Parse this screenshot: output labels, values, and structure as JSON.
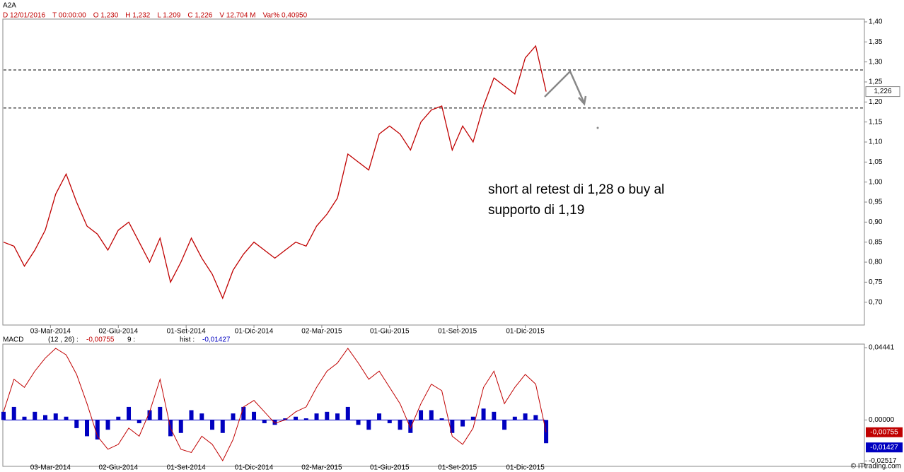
{
  "header": {
    "symbol": "A2A",
    "info": [
      "D 12/01/2016",
      "T 00:00:00",
      "O 1,230",
      "H 1,232",
      "L 1,209",
      "C 1,226",
      "V 12,704 M",
      "Var% 0,40950"
    ]
  },
  "chart_data": [
    {
      "type": "line",
      "color": "#c00000",
      "values": [
        0.85,
        0.84,
        0.79,
        0.83,
        0.88,
        0.97,
        1.02,
        0.95,
        0.89,
        0.87,
        0.83,
        0.88,
        0.9,
        0.85,
        0.8,
        0.86,
        0.75,
        0.8,
        0.86,
        0.81,
        0.77,
        0.71,
        0.78,
        0.82,
        0.85,
        0.83,
        0.81,
        0.83,
        0.85,
        0.84,
        0.89,
        0.92,
        0.96,
        1.07,
        1.05,
        1.03,
        1.12,
        1.14,
        1.12,
        1.08,
        1.15,
        1.18,
        1.19,
        1.08,
        1.14,
        1.1,
        1.19,
        1.26,
        1.24,
        1.22,
        1.31,
        1.34,
        1.226
      ],
      "xlim": [
        0,
        82.5
      ],
      "xticks": [
        {
          "value": 4.5,
          "label": "03-Mar-2014"
        },
        {
          "value": 11,
          "label": "02-Giu-2014"
        },
        {
          "value": 17.5,
          "label": "01-Set-2014"
        },
        {
          "value": 24,
          "label": "01-Dic-2014"
        },
        {
          "value": 30.5,
          "label": "02-Mar-2015"
        },
        {
          "value": 37,
          "label": "01-Giu-2015"
        },
        {
          "value": 43.5,
          "label": "01-Set-2015"
        },
        {
          "value": 50,
          "label": "01-Dic-2015"
        }
      ],
      "ylim": [
        0.643,
        1.407
      ],
      "yticks": [
        {
          "value": 0.7,
          "label": "0,70"
        },
        {
          "value": 0.75,
          "label": "0,75"
        },
        {
          "value": 0.8,
          "label": "0,80"
        },
        {
          "value": 0.85,
          "label": "0,85"
        },
        {
          "value": 0.9,
          "label": "0,90"
        },
        {
          "value": 0.95,
          "label": "0,95"
        },
        {
          "value": 1.0,
          "label": "1,00"
        },
        {
          "value": 1.05,
          "label": "1,05"
        },
        {
          "value": 1.1,
          "label": "1,10"
        },
        {
          "value": 1.15,
          "label": "1,15"
        },
        {
          "value": 1.2,
          "label": "1,20"
        },
        {
          "value": 1.25,
          "label": "1,25"
        },
        {
          "value": 1.3,
          "label": "1,30"
        },
        {
          "value": 1.35,
          "label": "1,35"
        },
        {
          "value": 1.4,
          "label": "1,40"
        }
      ],
      "levels": [
        1.28,
        1.185
      ],
      "last_price": {
        "value": 1.226,
        "label": "1,226"
      },
      "annotation": [
        "short al retest di 1,28 o buy al",
        "supporto di 1,19"
      ]
    },
    {
      "type": "macd",
      "header": [
        "MACD",
        "(12 , 26) :",
        "9 :",
        "hist :"
      ],
      "series": [
        {
          "color": "#c00000",
          "values": [
            0.005,
            0.025,
            0.02,
            0.03,
            0.038,
            0.044,
            0.04,
            0.028,
            0.01,
            -0.01,
            -0.018,
            -0.015,
            -0.005,
            -0.01,
            0.005,
            0.025,
            -0.005,
            -0.018,
            -0.02,
            -0.01,
            -0.015,
            -0.025,
            -0.012,
            0.008,
            0.012,
            0.005,
            -0.002,
            0.0,
            0.005,
            0.008,
            0.02,
            0.03,
            0.035,
            0.044,
            0.035,
            0.025,
            0.03,
            0.02,
            0.01,
            -0.005,
            0.01,
            0.022,
            0.018,
            -0.01,
            -0.015,
            -0.005,
            0.02,
            0.03,
            0.01,
            0.02,
            0.028,
            0.022,
            -0.00755
          ],
          "last_label": {
            "value": -0.00755,
            "label": "-0,00755"
          }
        },
        {
          "color": "#0000c0",
          "values": [
            0.005,
            0.008,
            0.002,
            0.005,
            0.003,
            0.004,
            0.002,
            -0.005,
            -0.01,
            -0.012,
            -0.006,
            0.002,
            0.008,
            -0.002,
            0.006,
            0.008,
            -0.01,
            -0.008,
            0.006,
            0.004,
            -0.006,
            -0.008,
            0.004,
            0.008,
            0.005,
            -0.002,
            -0.003,
            0.001,
            0.002,
            0.001,
            0.004,
            0.005,
            0.004,
            0.008,
            -0.003,
            -0.006,
            0.004,
            -0.002,
            -0.006,
            -0.008,
            0.006,
            0.006,
            0.001,
            -0.008,
            -0.004,
            0.002,
            0.007,
            0.005,
            -0.006,
            0.002,
            0.004,
            0.003,
            -0.01427
          ],
          "last_label": {
            "value": -0.01427,
            "label": "-0,01427"
          }
        }
      ],
      "xlim": [
        0,
        82.5
      ],
      "ylim": [
        -0.0285,
        0.0466
      ],
      "yticks": [
        {
          "value": 0.04441,
          "label": "0,04441"
        },
        {
          "value": 0,
          "label": "0,00000"
        },
        {
          "value": -0.02517,
          "label": "-0,02517"
        }
      ]
    }
  ],
  "footer": "© ITtrading.com"
}
